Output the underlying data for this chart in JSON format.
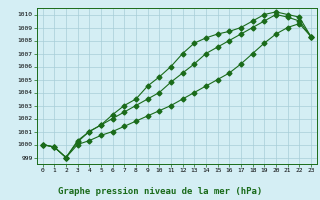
{
  "x": [
    0,
    1,
    2,
    3,
    4,
    5,
    6,
    7,
    8,
    9,
    10,
    11,
    12,
    13,
    14,
    15,
    16,
    17,
    18,
    19,
    20,
    21,
    22,
    23
  ],
  "line1": [
    1000.0,
    999.8,
    999.0,
    1000.3,
    1001.0,
    1001.5,
    1002.3,
    1003.0,
    1003.5,
    1004.5,
    1005.2,
    1006.0,
    1007.0,
    1007.8,
    1008.2,
    1008.5,
    1008.7,
    1009.0,
    1009.5,
    1010.0,
    1010.2,
    1010.0,
    1009.8,
    1008.3
  ],
  "line2": [
    1000.0,
    999.8,
    999.0,
    1000.2,
    1001.0,
    1001.5,
    1002.0,
    1002.5,
    1003.0,
    1003.5,
    1004.0,
    1004.8,
    1005.5,
    1006.2,
    1007.0,
    1007.5,
    1008.0,
    1008.5,
    1009.0,
    1009.5,
    1010.0,
    1009.8,
    1009.5,
    1008.3
  ],
  "line3": [
    1000.0,
    999.8,
    999.0,
    1000.0,
    1000.3,
    1000.7,
    1001.0,
    1001.4,
    1001.8,
    1002.2,
    1002.6,
    1003.0,
    1003.5,
    1004.0,
    1004.5,
    1005.0,
    1005.5,
    1006.2,
    1007.0,
    1007.8,
    1008.5,
    1009.0,
    1009.3,
    1008.3
  ],
  "line_color": "#1a6b1a",
  "bg_color": "#d4eef4",
  "grid_color": "#a8cdd8",
  "ylim": [
    998.5,
    1010.5
  ],
  "xlim": [
    -0.5,
    23.5
  ],
  "yticks": [
    999,
    1000,
    1001,
    1002,
    1003,
    1004,
    1005,
    1006,
    1007,
    1008,
    1009,
    1010
  ],
  "xticks": [
    0,
    1,
    2,
    3,
    4,
    5,
    6,
    7,
    8,
    9,
    10,
    11,
    12,
    13,
    14,
    15,
    16,
    17,
    18,
    19,
    20,
    21,
    22,
    23
  ],
  "xlabel_text": "Graphe pression niveau de la mer (hPa)",
  "marker": "D",
  "markersize": 2.5,
  "linewidth": 0.8
}
